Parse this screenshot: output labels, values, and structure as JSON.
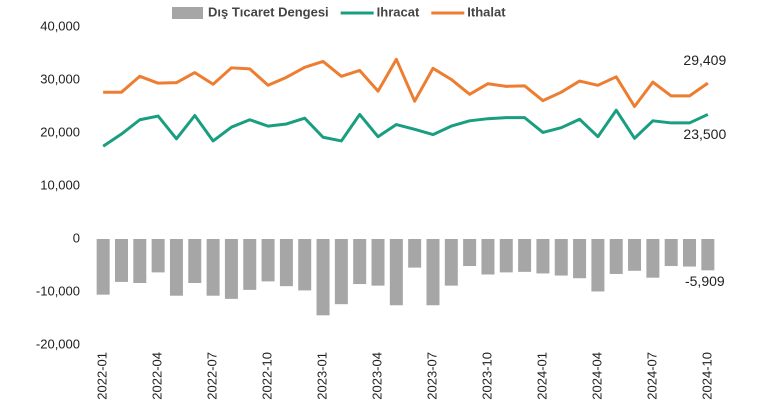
{
  "chart_data": {
    "type": "bar",
    "categories": [
      "2022-01",
      null,
      null,
      "2022-04",
      null,
      null,
      "2022-07",
      null,
      null,
      "2022-10",
      null,
      null,
      "2023-01",
      null,
      null,
      "2023-04",
      null,
      null,
      "2023-07",
      null,
      null,
      "2023-10",
      null,
      null,
      "2024-01",
      null,
      null,
      "2024-04",
      null,
      null,
      "2024-07",
      null,
      null,
      "2024-10"
    ],
    "series": [
      {
        "name": "Dış Tıcaret Dengesi",
        "type": "bar",
        "color": "#a6a6a6",
        "values": [
          -10500,
          -8100,
          -8300,
          -6300,
          -10700,
          -8300,
          -10700,
          -11300,
          -9600,
          -8000,
          -8900,
          -9700,
          -14400,
          -12300,
          -8500,
          -8800,
          -12500,
          -5400,
          -12500,
          -8800,
          -5100,
          -6700,
          -6300,
          -6200,
          -6500,
          -6900,
          -7400,
          -9900,
          -6600,
          -6000,
          -7300,
          -5100,
          -5200,
          -5909
        ],
        "value_labels": [
          null,
          null,
          null,
          null,
          null,
          null,
          null,
          null,
          null,
          null,
          null,
          null,
          null,
          null,
          null,
          null,
          null,
          null,
          null,
          null,
          null,
          null,
          null,
          null,
          null,
          null,
          null,
          null,
          null,
          null,
          null,
          null,
          null,
          "-5,909"
        ]
      },
      {
        "name": "Ihracat",
        "type": "line",
        "color": "#1a9e80",
        "values": [
          17500,
          19800,
          22500,
          23200,
          18900,
          23300,
          18500,
          21100,
          22500,
          21300,
          21700,
          22800,
          19200,
          18500,
          23500,
          19300,
          21600,
          20700,
          19700,
          21300,
          22300,
          22700,
          22900,
          22900,
          20100,
          21000,
          22600,
          19300,
          24300,
          19000,
          22300,
          21900,
          21900,
          23500
        ],
        "value_labels": [
          null,
          null,
          null,
          null,
          null,
          null,
          null,
          null,
          null,
          null,
          null,
          null,
          null,
          null,
          null,
          null,
          null,
          null,
          null,
          null,
          null,
          null,
          null,
          null,
          null,
          null,
          null,
          null,
          null,
          null,
          null,
          null,
          null,
          "23,500"
        ]
      },
      {
        "name": "Ithalat",
        "type": "line",
        "color": "#ed7d31",
        "values": [
          27700,
          27700,
          30700,
          29400,
          29500,
          31400,
          29200,
          32300,
          32100,
          29000,
          30500,
          32400,
          33500,
          30700,
          31800,
          27900,
          33900,
          26000,
          32200,
          30100,
          27300,
          29300,
          28800,
          28900,
          26100,
          27700,
          29800,
          29000,
          30600,
          25000,
          29600,
          27000,
          27000,
          29409
        ],
        "value_labels": [
          null,
          null,
          null,
          null,
          null,
          null,
          null,
          null,
          null,
          null,
          null,
          null,
          null,
          null,
          null,
          null,
          null,
          null,
          null,
          null,
          null,
          null,
          null,
          null,
          null,
          null,
          null,
          null,
          null,
          null,
          null,
          null,
          null,
          "29,409"
        ]
      }
    ],
    "ylim": [
      -20000,
      40000
    ],
    "yticks": [
      {
        "value": -20000,
        "label": "-20,000"
      },
      {
        "value": -10000,
        "label": "-10,000"
      },
      0,
      {
        "value": 10000,
        "label": "10,000"
      },
      {
        "value": 20000,
        "label": "20,000"
      },
      {
        "value": 30000,
        "label": "30,000"
      },
      {
        "value": 40000,
        "label": "40,000"
      }
    ],
    "grid": false,
    "legend": "top"
  }
}
